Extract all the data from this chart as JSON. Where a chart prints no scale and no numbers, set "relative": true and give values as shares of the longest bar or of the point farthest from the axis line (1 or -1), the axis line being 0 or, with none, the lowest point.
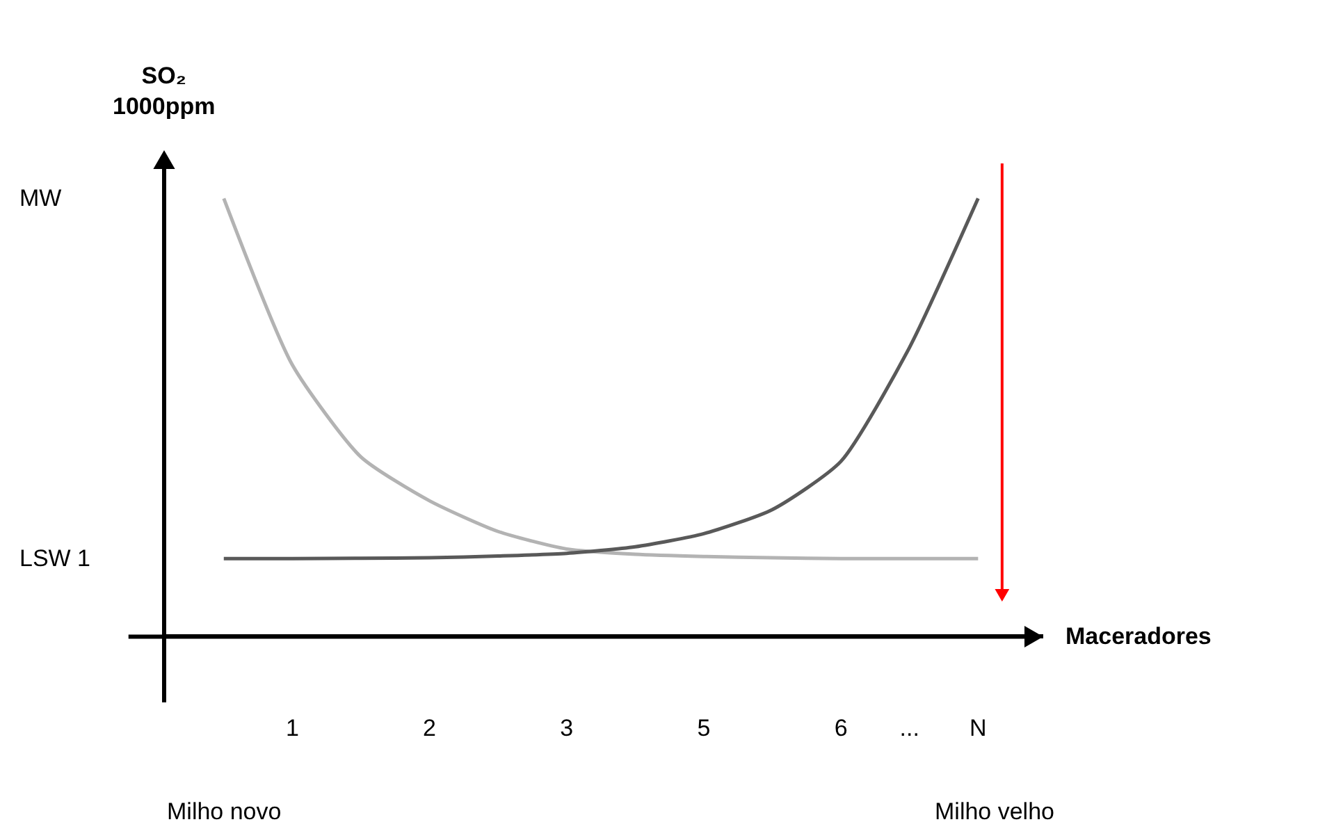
{
  "chart_data": {
    "type": "line",
    "relative": true,
    "ylabel": "SO₂ 1000ppm",
    "xlabel": "Maceradores",
    "categories": [
      null,
      "1",
      null,
      "2",
      null,
      "3",
      null,
      "5",
      null,
      "6",
      "...",
      "N"
    ],
    "series": [
      {
        "color": "#b3b3b3",
        "values": [
          1,
          0.62,
          0.41,
          0.31,
          0.24,
          0.2,
          0.188,
          0.183,
          0.18,
          0.178,
          0.178,
          0.178
        ]
      },
      {
        "color": "#595959",
        "values": [
          0.178,
          0.178,
          0.179,
          0.18,
          0.184,
          0.19,
          0.205,
          0.235,
          0.29,
          0.4,
          0.66,
          1
        ]
      }
    ],
    "annotations": [
      "MW",
      "LSW 1",
      "Milho novo",
      "Milho velho"
    ],
    "grid": false,
    "marker": "none",
    "line_style": "solid"
  }
}
